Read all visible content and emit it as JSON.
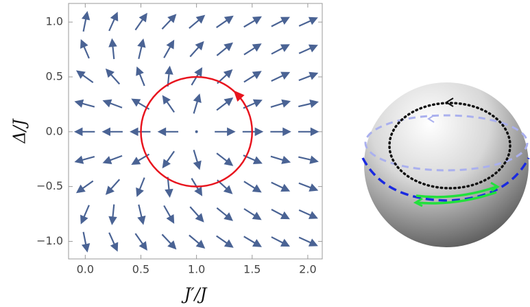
{
  "chart_data": {
    "type": "quiver",
    "x_label": "J′/J",
    "y_label": "Δ/J",
    "xlim": [
      -0.15,
      2.13
    ],
    "ylim": [
      -1.16,
      1.17
    ],
    "xticks": [
      {
        "value": 0,
        "label": "0.0"
      },
      0.5,
      {
        "value": 1,
        "label": "1.0"
      },
      1.5,
      {
        "value": 2,
        "label": "2.0"
      }
    ],
    "yticks": [
      {
        "value": -1,
        "label": "−1.0"
      },
      {
        "value": -0.5,
        "label": "−0.5"
      },
      {
        "value": 0,
        "label": "0.0"
      },
      0.5,
      {
        "value": 1,
        "label": "1.0"
      }
    ],
    "color": "#4a6394",
    "x": [
      0,
      0.25,
      0.5,
      0.75,
      1,
      1.25,
      1.5,
      1.75,
      2
    ],
    "y": [
      1,
      0.75,
      0.5,
      0.25,
      0,
      -0.25,
      -0.5,
      -0.75,
      -1
    ],
    "u": [
      [
        0.2,
        0.45,
        0.7,
        0.95,
        1.2,
        1.45,
        1.7,
        1.95,
        2.2
      ],
      [
        -0.325,
        -0.075,
        0.175,
        0.425,
        0.675,
        0.925,
        1.175,
        1.425,
        1.675
      ],
      [
        -0.7,
        -0.45,
        -0.2,
        0.05,
        0.3,
        0.55,
        0.8,
        1.05,
        1.3
      ],
      [
        -0.925,
        -0.675,
        -0.425,
        -0.175,
        0.075,
        0.325,
        0.575,
        0.825,
        1.075
      ],
      [
        -1,
        -0.75,
        -0.5,
        -0.25,
        0,
        0.25,
        0.5,
        0.75,
        1
      ],
      [
        -0.925,
        -0.675,
        -0.425,
        -0.175,
        0.075,
        0.325,
        0.575,
        0.825,
        1.075
      ],
      [
        -0.7,
        -0.45,
        -0.2,
        0.05,
        0.3,
        0.55,
        0.8,
        1.05,
        1.3
      ],
      [
        -0.325,
        -0.075,
        0.175,
        0.425,
        0.675,
        0.925,
        1.175,
        1.425,
        1.675
      ],
      [
        0.2,
        0.45,
        0.7,
        0.95,
        1.2,
        1.45,
        1.7,
        1.95,
        2.2
      ]
    ],
    "v": [
      [
        1,
        1,
        1,
        1,
        1,
        1,
        1,
        1,
        1
      ],
      [
        0.75,
        0.75,
        0.75,
        0.75,
        0.75,
        0.75,
        0.75,
        0.75,
        0.75
      ],
      [
        0.5,
        0.5,
        0.5,
        0.5,
        0.5,
        0.5,
        0.5,
        0.5,
        0.5
      ],
      [
        0.25,
        0.25,
        0.25,
        0.25,
        0.25,
        0.25,
        0.25,
        0.25,
        0.25
      ],
      [
        0,
        0,
        0,
        0,
        0,
        0,
        0,
        0,
        0
      ],
      [
        -0.25,
        -0.25,
        -0.25,
        -0.25,
        -0.25,
        -0.25,
        -0.25,
        -0.25,
        -0.25
      ],
      [
        -0.5,
        -0.5,
        -0.5,
        -0.5,
        -0.5,
        -0.5,
        -0.5,
        -0.5,
        -0.5
      ],
      [
        -0.75,
        -0.75,
        -0.75,
        -0.75,
        -0.75,
        -0.75,
        -0.75,
        -0.75,
        -0.75
      ],
      [
        -1,
        -1,
        -1,
        -1,
        -1,
        -1,
        -1,
        -1,
        -1
      ]
    ],
    "circle": {
      "center": [
        1,
        0
      ],
      "radius": 0.5,
      "color": "#e8141e"
    }
  }
}
